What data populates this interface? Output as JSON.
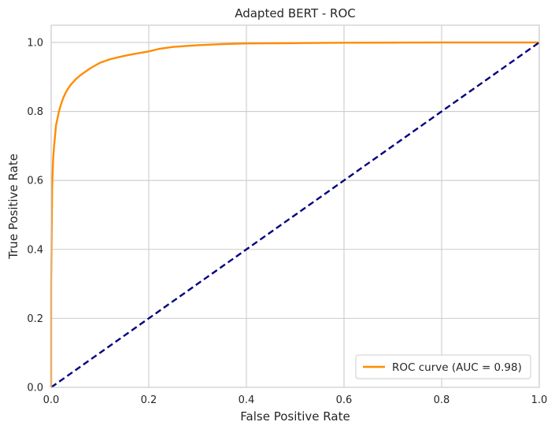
{
  "chart_data": {
    "type": "line",
    "title": "Adapted BERT - ROC",
    "xlabel": "False Positive Rate",
    "ylabel": "True Positive Rate",
    "xlim": [
      0.0,
      1.0
    ],
    "ylim": [
      0.0,
      1.05
    ],
    "grid": true,
    "legend_position": "lower-right",
    "x_ticks": [
      "0.0",
      "0.2",
      "0.4",
      "0.6",
      "0.8",
      "1.0"
    ],
    "y_ticks": [
      "0.0",
      "0.2",
      "0.4",
      "0.6",
      "0.8",
      "1.0"
    ],
    "series": [
      {
        "name": "ROC curve (AUC = 0.98)",
        "color": "#ff8c00",
        "style": "solid",
        "x": [
          0.0,
          0.0,
          0.001,
          0.002,
          0.004,
          0.006,
          0.008,
          0.01,
          0.013,
          0.016,
          0.02,
          0.025,
          0.03,
          0.035,
          0.04,
          0.05,
          0.06,
          0.07,
          0.08,
          0.09,
          0.1,
          0.12,
          0.14,
          0.16,
          0.18,
          0.2,
          0.22,
          0.25,
          0.3,
          0.35,
          0.4,
          0.5,
          0.6,
          0.7,
          0.8,
          0.9,
          1.0
        ],
        "y": [
          0.0,
          0.3,
          0.45,
          0.58,
          0.66,
          0.7,
          0.73,
          0.76,
          0.78,
          0.8,
          0.82,
          0.84,
          0.855,
          0.867,
          0.877,
          0.893,
          0.905,
          0.915,
          0.925,
          0.933,
          0.941,
          0.951,
          0.958,
          0.964,
          0.969,
          0.974,
          0.981,
          0.987,
          0.992,
          0.995,
          0.997,
          0.998,
          0.999,
          0.9995,
          1.0,
          1.0,
          1.0
        ]
      },
      {
        "name": "",
        "color": "#000080",
        "style": "dashed",
        "x": [
          0.0,
          1.0
        ],
        "y": [
          0.0,
          1.0
        ]
      }
    ]
  }
}
